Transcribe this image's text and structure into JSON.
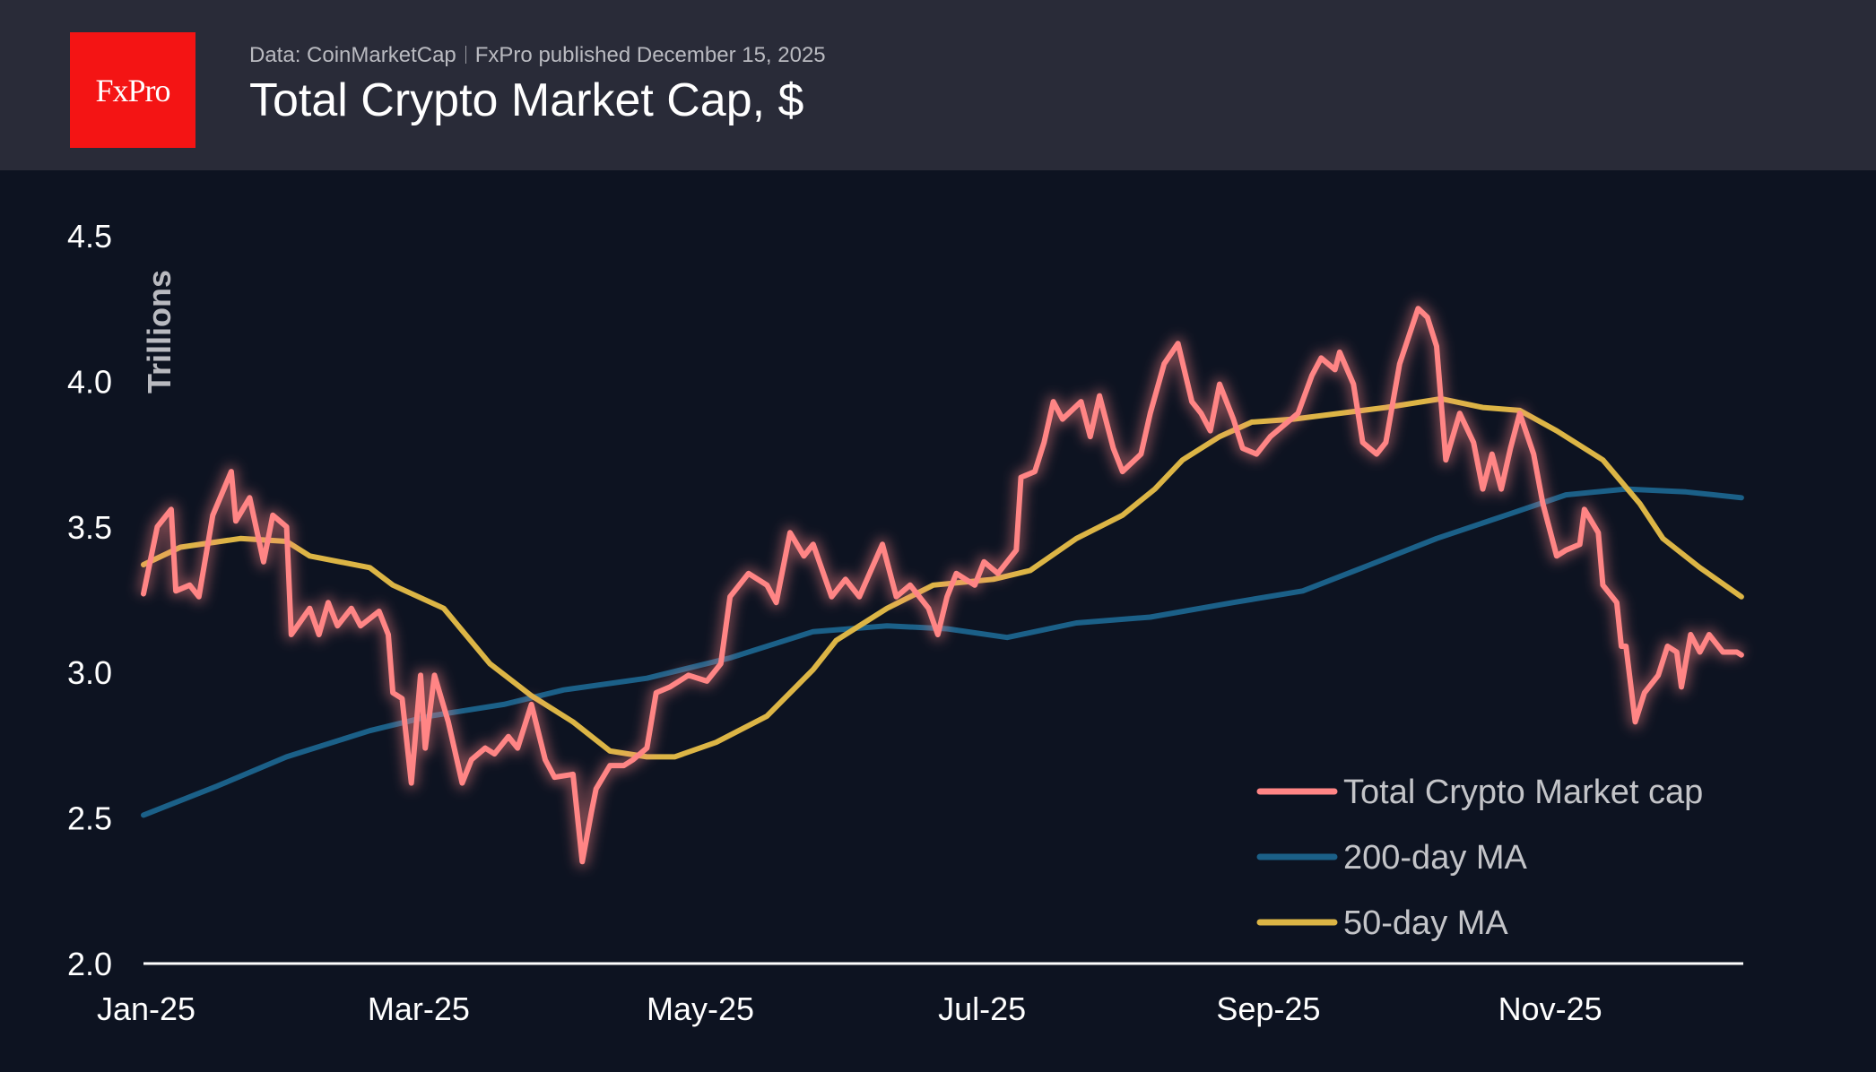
{
  "header": {
    "logo_text": "FxPro",
    "source": "Data: CoinMarketCap",
    "published": "FxPro published December 15, 2025",
    "title": "Total Crypto Market Cap, $"
  },
  "colors": {
    "background": "#0d1321",
    "header": "#292b38",
    "logo": "#f41414",
    "total": "#ff8585",
    "ma200": "#1b6088",
    "ma50": "#dcb545"
  },
  "chart_data": {
    "type": "line",
    "title": "Total Crypto Market Cap, $",
    "ylabel": "Trillions",
    "ylim": [
      2.0,
      4.5
    ],
    "yticks": [
      "2.0",
      "2.5",
      "3.0",
      "3.5",
      "4.0",
      "4.5"
    ],
    "xticks": [
      {
        "label": "Jan-25",
        "date": "2025-01-01"
      },
      {
        "label": "Mar-25",
        "date": "2025-03-01"
      },
      {
        "label": "May-25",
        "date": "2025-05-01"
      },
      {
        "label": "Jul-25",
        "date": "2025-07-01"
      },
      {
        "label": "Sep-25",
        "date": "2025-09-01"
      },
      {
        "label": "Nov-25",
        "date": "2025-11-01"
      }
    ],
    "xlim": [
      "2025-01-01",
      "2025-12-13"
    ],
    "grid": false,
    "legend_position": "bottom-right",
    "series": [
      {
        "name": "Total Crypto Market cap",
        "color": "#ff8585",
        "points": [
          [
            "2025-01-01",
            3.27
          ],
          [
            "2025-01-04",
            3.5
          ],
          [
            "2025-01-07",
            3.56
          ],
          [
            "2025-01-08",
            3.28
          ],
          [
            "2025-01-11",
            3.3
          ],
          [
            "2025-01-13",
            3.26
          ],
          [
            "2025-01-16",
            3.54
          ],
          [
            "2025-01-20",
            3.69
          ],
          [
            "2025-01-21",
            3.52
          ],
          [
            "2025-01-24",
            3.6
          ],
          [
            "2025-01-27",
            3.38
          ],
          [
            "2025-01-29",
            3.54
          ],
          [
            "2025-02-01",
            3.5
          ],
          [
            "2025-02-02",
            3.13
          ],
          [
            "2025-02-06",
            3.22
          ],
          [
            "2025-02-08",
            3.13
          ],
          [
            "2025-02-10",
            3.24
          ],
          [
            "2025-02-12",
            3.16
          ],
          [
            "2025-02-15",
            3.22
          ],
          [
            "2025-02-17",
            3.16
          ],
          [
            "2025-02-21",
            3.21
          ],
          [
            "2025-02-23",
            3.13
          ],
          [
            "2025-02-24",
            2.93
          ],
          [
            "2025-02-26",
            2.91
          ],
          [
            "2025-02-28",
            2.62
          ],
          [
            "2025-03-02",
            2.99
          ],
          [
            "2025-03-03",
            2.74
          ],
          [
            "2025-03-05",
            2.99
          ],
          [
            "2025-03-08",
            2.83
          ],
          [
            "2025-03-11",
            2.62
          ],
          [
            "2025-03-13",
            2.7
          ],
          [
            "2025-03-16",
            2.74
          ],
          [
            "2025-03-18",
            2.72
          ],
          [
            "2025-03-21",
            2.78
          ],
          [
            "2025-03-23",
            2.74
          ],
          [
            "2025-03-26",
            2.89
          ],
          [
            "2025-03-29",
            2.7
          ],
          [
            "2025-03-31",
            2.64
          ],
          [
            "2025-04-04",
            2.65
          ],
          [
            "2025-04-06",
            2.35
          ],
          [
            "2025-04-08",
            2.52
          ],
          [
            "2025-04-09",
            2.6
          ],
          [
            "2025-04-12",
            2.68
          ],
          [
            "2025-04-15",
            2.68
          ],
          [
            "2025-04-17",
            2.7
          ],
          [
            "2025-04-20",
            2.74
          ],
          [
            "2025-04-22",
            2.93
          ],
          [
            "2025-04-25",
            2.95
          ],
          [
            "2025-04-29",
            2.99
          ],
          [
            "2025-05-03",
            2.97
          ],
          [
            "2025-05-06",
            3.03
          ],
          [
            "2025-05-08",
            3.26
          ],
          [
            "2025-05-12",
            3.34
          ],
          [
            "2025-05-16",
            3.3
          ],
          [
            "2025-05-18",
            3.24
          ],
          [
            "2025-05-21",
            3.48
          ],
          [
            "2025-05-24",
            3.4
          ],
          [
            "2025-05-26",
            3.44
          ],
          [
            "2025-05-30",
            3.26
          ],
          [
            "2025-06-02",
            3.32
          ],
          [
            "2025-06-05",
            3.26
          ],
          [
            "2025-06-10",
            3.44
          ],
          [
            "2025-06-13",
            3.26
          ],
          [
            "2025-06-16",
            3.3
          ],
          [
            "2025-06-20",
            3.22
          ],
          [
            "2025-06-22",
            3.13
          ],
          [
            "2025-06-24",
            3.26
          ],
          [
            "2025-06-26",
            3.34
          ],
          [
            "2025-06-30",
            3.3
          ],
          [
            "2025-07-02",
            3.38
          ],
          [
            "2025-07-05",
            3.34
          ],
          [
            "2025-07-09",
            3.42
          ],
          [
            "2025-07-10",
            3.67
          ],
          [
            "2025-07-13",
            3.69
          ],
          [
            "2025-07-15",
            3.79
          ],
          [
            "2025-07-17",
            3.93
          ],
          [
            "2025-07-19",
            3.87
          ],
          [
            "2025-07-23",
            3.93
          ],
          [
            "2025-07-25",
            3.81
          ],
          [
            "2025-07-27",
            3.95
          ],
          [
            "2025-07-30",
            3.77
          ],
          [
            "2025-08-01",
            3.69
          ],
          [
            "2025-08-05",
            3.75
          ],
          [
            "2025-08-07",
            3.89
          ],
          [
            "2025-08-10",
            4.06
          ],
          [
            "2025-08-13",
            4.13
          ],
          [
            "2025-08-16",
            3.93
          ],
          [
            "2025-08-18",
            3.89
          ],
          [
            "2025-08-20",
            3.83
          ],
          [
            "2025-08-22",
            3.99
          ],
          [
            "2025-08-25",
            3.87
          ],
          [
            "2025-08-27",
            3.77
          ],
          [
            "2025-08-30",
            3.75
          ],
          [
            "2025-09-02",
            3.81
          ],
          [
            "2025-09-05",
            3.85
          ],
          [
            "2025-09-08",
            3.89
          ],
          [
            "2025-09-11",
            4.02
          ],
          [
            "2025-09-13",
            4.08
          ],
          [
            "2025-09-16",
            4.04
          ],
          [
            "2025-09-17",
            4.1
          ],
          [
            "2025-09-20",
            3.99
          ],
          [
            "2025-09-22",
            3.79
          ],
          [
            "2025-09-25",
            3.75
          ],
          [
            "2025-09-27",
            3.79
          ],
          [
            "2025-09-30",
            4.06
          ],
          [
            "2025-10-04",
            4.25
          ],
          [
            "2025-10-06",
            4.22
          ],
          [
            "2025-10-08",
            4.12
          ],
          [
            "2025-10-10",
            3.73
          ],
          [
            "2025-10-13",
            3.89
          ],
          [
            "2025-10-16",
            3.79
          ],
          [
            "2025-10-18",
            3.63
          ],
          [
            "2025-10-20",
            3.75
          ],
          [
            "2025-10-22",
            3.63
          ],
          [
            "2025-10-24",
            3.77
          ],
          [
            "2025-10-26",
            3.89
          ],
          [
            "2025-10-29",
            3.75
          ],
          [
            "2025-10-31",
            3.58
          ],
          [
            "2025-11-03",
            3.4
          ],
          [
            "2025-11-05",
            3.42
          ],
          [
            "2025-11-08",
            3.44
          ],
          [
            "2025-11-09",
            3.56
          ],
          [
            "2025-11-12",
            3.48
          ],
          [
            "2025-11-13",
            3.3
          ],
          [
            "2025-11-16",
            3.24
          ],
          [
            "2025-11-17",
            3.09
          ],
          [
            "2025-11-18",
            3.09
          ],
          [
            "2025-11-20",
            2.83
          ],
          [
            "2025-11-22",
            2.93
          ],
          [
            "2025-11-25",
            2.99
          ],
          [
            "2025-11-27",
            3.09
          ],
          [
            "2025-11-29",
            3.07
          ],
          [
            "2025-11-30",
            2.95
          ],
          [
            "2025-12-02",
            3.13
          ],
          [
            "2025-12-04",
            3.07
          ],
          [
            "2025-12-06",
            3.13
          ],
          [
            "2025-12-09",
            3.07
          ],
          [
            "2025-12-12",
            3.07
          ],
          [
            "2025-12-13",
            3.06
          ]
        ]
      },
      {
        "name": "200-day MA",
        "color": "#1b6088",
        "points": [
          [
            "2025-01-01",
            2.51
          ],
          [
            "2025-01-17",
            2.61
          ],
          [
            "2025-02-01",
            2.71
          ],
          [
            "2025-02-19",
            2.8
          ],
          [
            "2025-03-04",
            2.85
          ],
          [
            "2025-03-20",
            2.89
          ],
          [
            "2025-04-02",
            2.94
          ],
          [
            "2025-04-20",
            2.98
          ],
          [
            "2025-05-08",
            3.05
          ],
          [
            "2025-05-26",
            3.14
          ],
          [
            "2025-06-11",
            3.16
          ],
          [
            "2025-06-24",
            3.15
          ],
          [
            "2025-07-07",
            3.12
          ],
          [
            "2025-07-22",
            3.17
          ],
          [
            "2025-08-07",
            3.19
          ],
          [
            "2025-08-25",
            3.24
          ],
          [
            "2025-09-09",
            3.28
          ],
          [
            "2025-09-22",
            3.36
          ],
          [
            "2025-10-08",
            3.46
          ],
          [
            "2025-10-23",
            3.54
          ],
          [
            "2025-11-05",
            3.61
          ],
          [
            "2025-11-18",
            3.63
          ],
          [
            "2025-12-01",
            3.62
          ],
          [
            "2025-12-13",
            3.6
          ]
        ]
      },
      {
        "name": "50-day MA",
        "color": "#dcb545",
        "points": [
          [
            "2025-01-01",
            3.37
          ],
          [
            "2025-01-09",
            3.43
          ],
          [
            "2025-01-22",
            3.46
          ],
          [
            "2025-02-01",
            3.45
          ],
          [
            "2025-02-06",
            3.4
          ],
          [
            "2025-02-19",
            3.36
          ],
          [
            "2025-02-24",
            3.3
          ],
          [
            "2025-03-07",
            3.22
          ],
          [
            "2025-03-17",
            3.03
          ],
          [
            "2025-03-26",
            2.92
          ],
          [
            "2025-04-04",
            2.83
          ],
          [
            "2025-04-12",
            2.73
          ],
          [
            "2025-04-20",
            2.71
          ],
          [
            "2025-04-26",
            2.71
          ],
          [
            "2025-05-05",
            2.76
          ],
          [
            "2025-05-16",
            2.85
          ],
          [
            "2025-05-26",
            3.01
          ],
          [
            "2025-05-31",
            3.11
          ],
          [
            "2025-06-11",
            3.22
          ],
          [
            "2025-06-21",
            3.3
          ],
          [
            "2025-07-04",
            3.32
          ],
          [
            "2025-07-12",
            3.35
          ],
          [
            "2025-07-22",
            3.46
          ],
          [
            "2025-08-01",
            3.54
          ],
          [
            "2025-08-08",
            3.63
          ],
          [
            "2025-08-14",
            3.73
          ],
          [
            "2025-08-22",
            3.81
          ],
          [
            "2025-08-29",
            3.86
          ],
          [
            "2025-09-07",
            3.87
          ],
          [
            "2025-09-17",
            3.89
          ],
          [
            "2025-09-27",
            3.91
          ],
          [
            "2025-10-09",
            3.94
          ],
          [
            "2025-10-18",
            3.91
          ],
          [
            "2025-10-26",
            3.9
          ],
          [
            "2025-11-03",
            3.83
          ],
          [
            "2025-11-13",
            3.73
          ],
          [
            "2025-11-21",
            3.58
          ],
          [
            "2025-11-26",
            3.46
          ],
          [
            "2025-12-04",
            3.36
          ],
          [
            "2025-12-13",
            3.26
          ]
        ]
      }
    ]
  }
}
